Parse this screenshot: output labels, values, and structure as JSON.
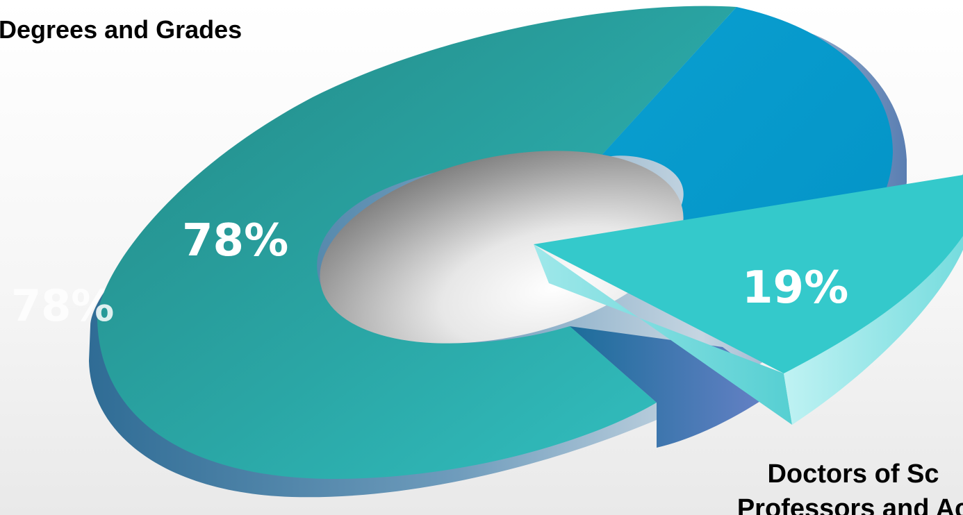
{
  "title": "Degrees and Grades",
  "annotation": {
    "line1": "Doctors of Sc",
    "line2": "Professors and Ac"
  },
  "ghost_label": "78%",
  "colors": {
    "teal_main": "#2a9e9c",
    "teal_dark": "#238885",
    "blue_slice": "#0399cc",
    "cyan_exploded": "#34c9cb",
    "side_dark": "#3a6fa0",
    "hole_grey": "#8a8a8a"
  },
  "chart_data": {
    "type": "pie",
    "style": "3d-doughnut-exploded",
    "title": "Degrees and Grades",
    "slices": [
      {
        "label": "78%",
        "value": 78,
        "color": "#2a9e9c",
        "exploded": false
      },
      {
        "label": "",
        "value": 3,
        "color": "#0399cc",
        "exploded": false
      },
      {
        "label": "19%",
        "value": 19,
        "color": "#34c9cb",
        "exploded": true
      }
    ],
    "annotations": [
      "Doctors of Sc",
      "Professors and Ac"
    ]
  }
}
